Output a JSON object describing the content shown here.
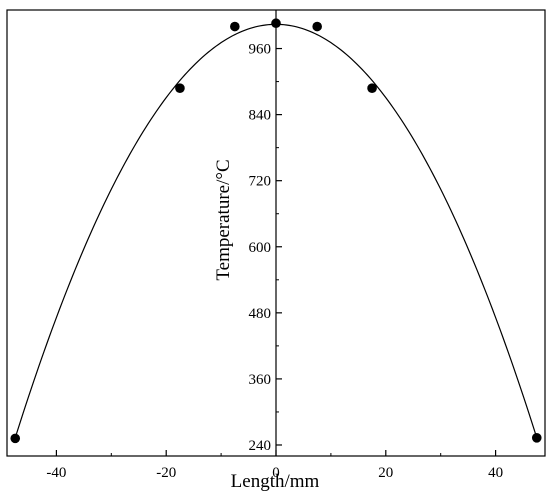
{
  "chart_data": {
    "type": "scatter",
    "title": "",
    "xlabel": "Length/mm",
    "ylabel": "Temperature/°C",
    "xlim": [
      -49,
      49
    ],
    "ylim": [
      220,
      1030
    ],
    "x_ticks": [
      -40,
      -20,
      0,
      20,
      40
    ],
    "y_ticks": [
      240,
      360,
      480,
      600,
      720,
      840,
      960
    ],
    "grid": false,
    "legend": "none",
    "y_axis_position": "x=0 (center)",
    "series": [
      {
        "type": "scatter",
        "marker_color": "#000000",
        "points": [
          {
            "x": -47.5,
            "y": 252
          },
          {
            "x": -17.5,
            "y": 888
          },
          {
            "x": -7.5,
            "y": 1000
          },
          {
            "x": 0,
            "y": 1006
          },
          {
            "x": 7.5,
            "y": 1000
          },
          {
            "x": 17.5,
            "y": 888
          },
          {
            "x": 47.5,
            "y": 253
          }
        ]
      },
      {
        "type": "line",
        "line_color": "#000000",
        "fit": "quadratic",
        "x_range": [
          -47.5,
          47.5
        ],
        "equation": {
          "vertex_y": 1004,
          "curvature": 0.3328
        }
      }
    ]
  }
}
